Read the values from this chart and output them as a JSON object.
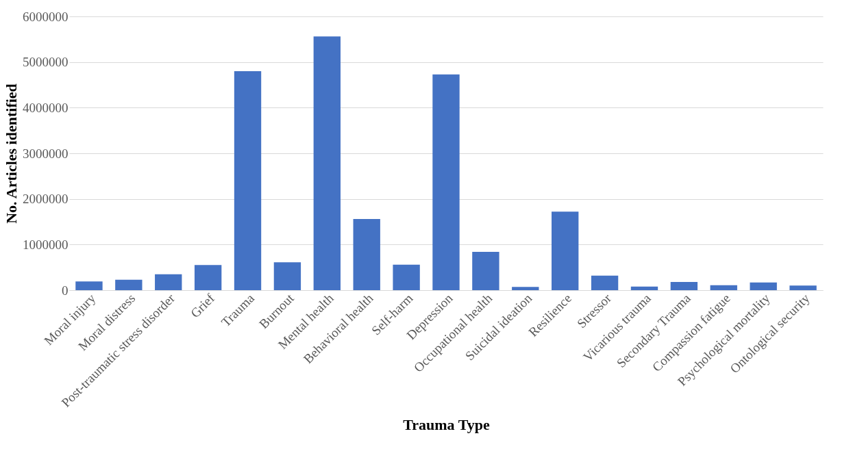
{
  "chart_data": {
    "type": "bar",
    "xlabel": "Trauma Type",
    "ylabel": "No. Articles identified",
    "categories": [
      "Moral injury",
      "Moral distress",
      "Post-traumatic stress disorder",
      "Grief",
      "Trauma",
      "Burnout",
      "Mental health",
      "Behavioral health",
      "Self-harm",
      "Depression",
      "Occupational health",
      "Suicidal ideation",
      "Resilience",
      "Stressor",
      "Vicarious trauma",
      "Secondary Trauma",
      "Compassion fatigue",
      "Psychological mortality",
      "Ontological security"
    ],
    "values": [
      190000,
      230000,
      350000,
      550000,
      4800000,
      610000,
      5560000,
      1560000,
      560000,
      4730000,
      840000,
      70000,
      1720000,
      320000,
      80000,
      180000,
      110000,
      170000,
      100000
    ],
    "color": "#4472c4",
    "ylim": [
      0,
      6000000
    ],
    "yticks": [
      0,
      1000000,
      2000000,
      3000000,
      4000000,
      5000000,
      6000000
    ],
    "grid": "y"
  }
}
